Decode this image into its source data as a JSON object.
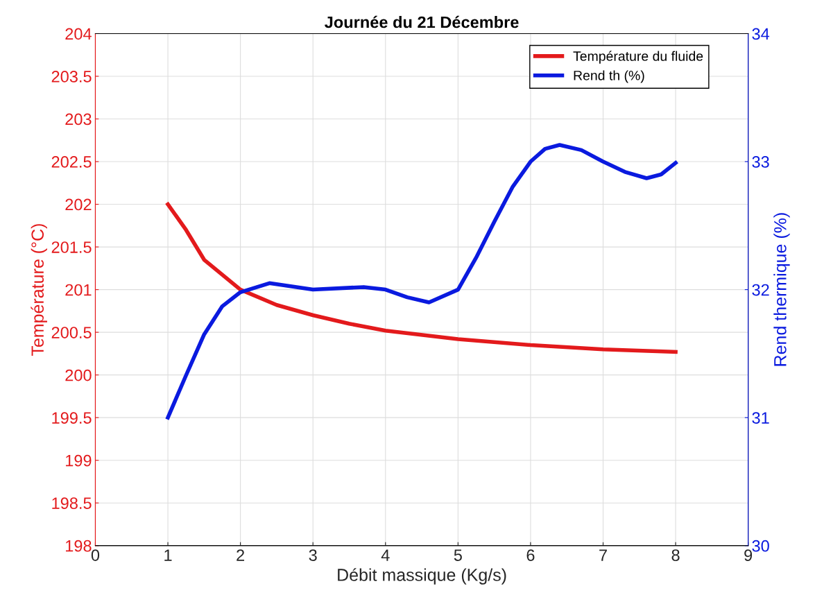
{
  "chart_data": {
    "type": "line",
    "title": "Journée du 21 Décembre",
    "xlabel": "Débit massique (Kg/s)",
    "ylabel": "Température (°C)",
    "y2label": "Rend thermique (%)",
    "xlim": [
      0,
      9
    ],
    "xticks": [
      0,
      1,
      2,
      3,
      4,
      5,
      6,
      7,
      8,
      9
    ],
    "ylim": [
      198,
      204
    ],
    "yticks": [
      198,
      198.5,
      199,
      199.5,
      200,
      200.5,
      201,
      201.5,
      202,
      202.5,
      203,
      203.5,
      204
    ],
    "y2lim": [
      30,
      34
    ],
    "y2ticks": [
      30,
      31,
      32,
      33,
      34
    ],
    "grid": true,
    "legend": "top right",
    "line_style": "solid",
    "marker": "none",
    "series": [
      {
        "name": "Température du fluide",
        "color": "#e31a1c",
        "x": [
          1,
          1.25,
          1.5,
          2,
          2.5,
          3,
          3.5,
          4,
          5,
          6,
          7,
          8
        ],
        "values": [
          202,
          201.7,
          201.35,
          201.0,
          200.82,
          200.7,
          200.6,
          200.52,
          200.42,
          200.35,
          200.3,
          200.27
        ]
      },
      {
        "name": "Rend th (%)",
        "color": "#0a1adf",
        "axis": "y2",
        "x": [
          1,
          1.25,
          1.5,
          1.75,
          2,
          2.4,
          3,
          3.7,
          4,
          4.3,
          4.6,
          5,
          5.25,
          5.5,
          5.75,
          6,
          6.2,
          6.4,
          6.7,
          7,
          7.3,
          7.6,
          7.8,
          8
        ],
        "values": [
          31,
          31.33,
          31.65,
          31.87,
          31.98,
          32.05,
          32.0,
          32.02,
          32.0,
          31.94,
          31.9,
          32.0,
          32.25,
          32.53,
          32.8,
          33.0,
          33.1,
          33.13,
          33.09,
          33.0,
          32.92,
          32.87,
          32.9,
          32.99
        ]
      }
    ]
  }
}
